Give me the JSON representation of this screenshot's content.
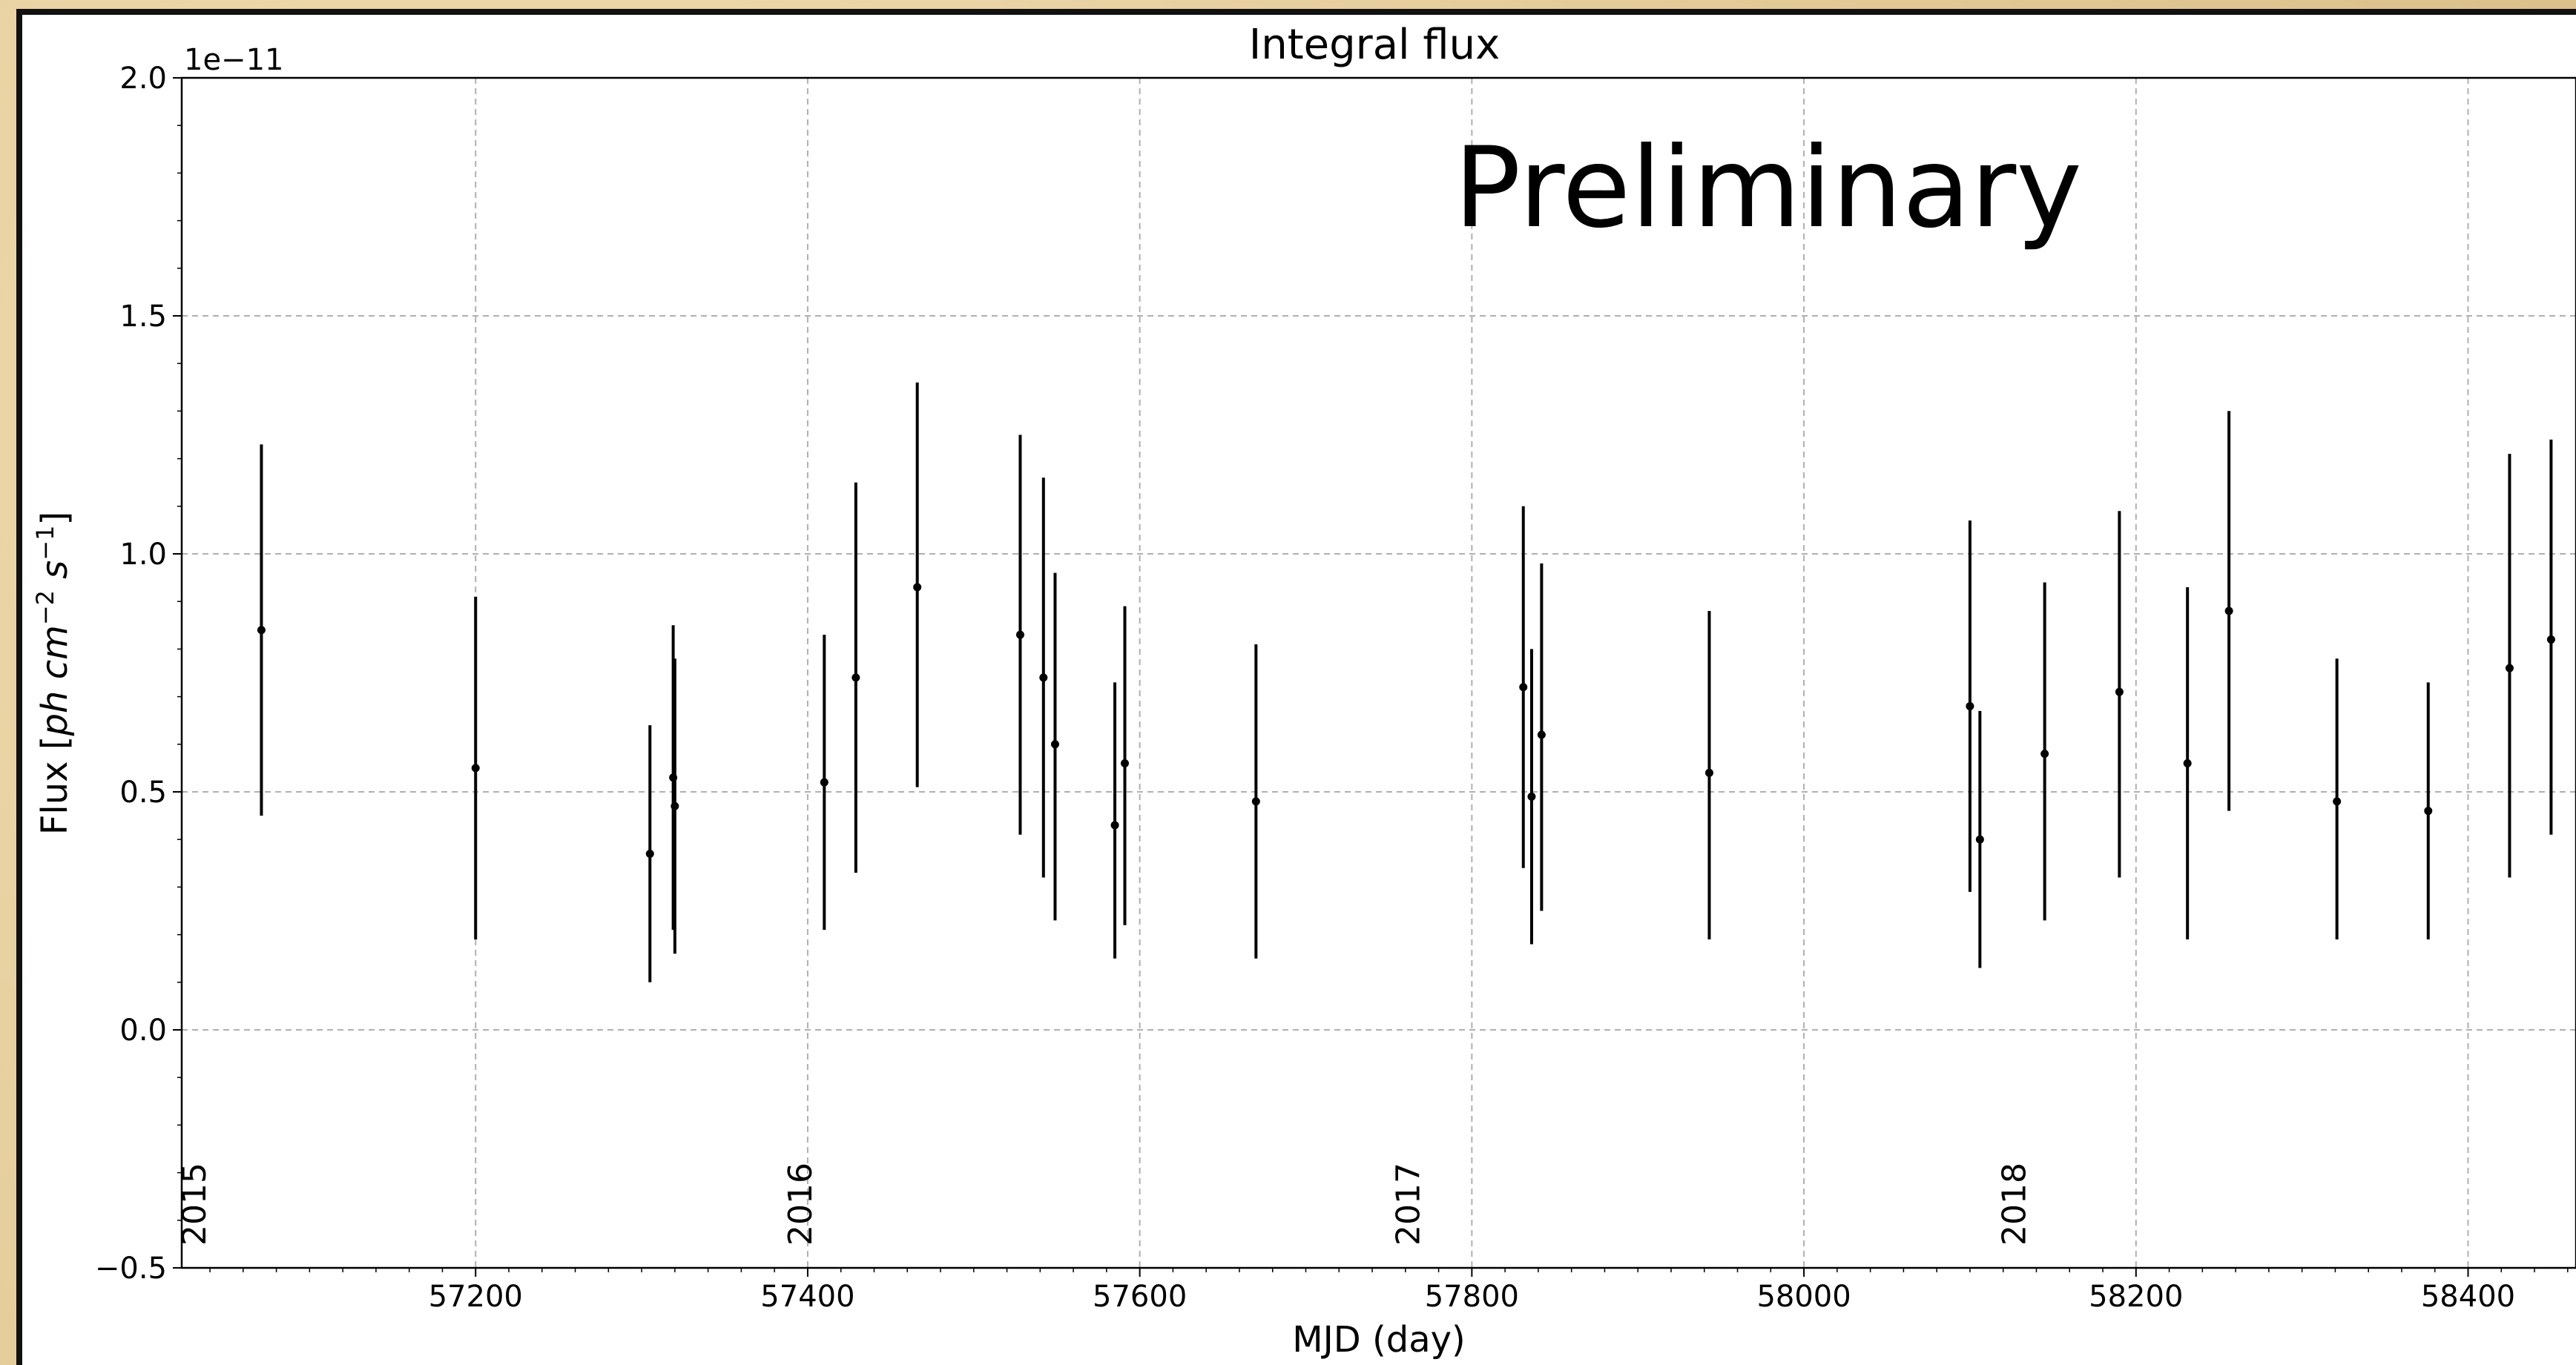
{
  "chart_data": {
    "type": "scatter",
    "title": "Integral flux",
    "xlabel": "MJD (day)",
    "ylabel": "Flux [ph cm^-2 s^-1]",
    "ylabel_parts": {
      "pre": "Flux [",
      "ph": "ph",
      "cm": "cm",
      "cm_exp": "−2",
      "s": "s",
      "s_exp": "−1",
      "post": "]"
    },
    "y_offset_text": "1e−11",
    "watermark": "Preliminary",
    "xlim": [
      57023,
      58465
    ],
    "ylim": [
      -0.5,
      2.0
    ],
    "x_ticks": [
      57200,
      57400,
      57600,
      57800,
      58000,
      58200,
      58400
    ],
    "y_ticks": [
      -0.5,
      0.0,
      0.5,
      1.0,
      1.5,
      2.0
    ],
    "y_tick_labels": [
      "−0.5",
      "0.0",
      "0.5",
      "1.0",
      "1.5",
      "2.0"
    ],
    "grid": true,
    "year_markers": [
      {
        "label": "2015",
        "x": 57023
      },
      {
        "label": "2016",
        "x": 57388
      },
      {
        "label": "2017",
        "x": 57754
      },
      {
        "label": "2018",
        "x": 58119
      }
    ],
    "series": [
      {
        "marker_color": "#000000",
        "points": [
          {
            "x": 57071,
            "y": 0.84,
            "ylow": 0.45,
            "yhigh": 1.23
          },
          {
            "x": 57200,
            "y": 0.55,
            "ylow": 0.19,
            "yhigh": 0.91
          },
          {
            "x": 57305,
            "y": 0.37,
            "ylow": 0.1,
            "yhigh": 0.64
          },
          {
            "x": 57319,
            "y": 0.53,
            "ylow": 0.21,
            "yhigh": 0.85
          },
          {
            "x": 57320,
            "y": 0.47,
            "ylow": 0.16,
            "yhigh": 0.78
          },
          {
            "x": 57410,
            "y": 0.52,
            "ylow": 0.21,
            "yhigh": 0.83
          },
          {
            "x": 57429,
            "y": 0.74,
            "ylow": 0.33,
            "yhigh": 1.15
          },
          {
            "x": 57466,
            "y": 0.93,
            "ylow": 0.51,
            "yhigh": 1.36
          },
          {
            "x": 57528,
            "y": 0.83,
            "ylow": 0.41,
            "yhigh": 1.25
          },
          {
            "x": 57542,
            "y": 0.74,
            "ylow": 0.32,
            "yhigh": 1.16
          },
          {
            "x": 57549,
            "y": 0.6,
            "ylow": 0.23,
            "yhigh": 0.96
          },
          {
            "x": 57585,
            "y": 0.43,
            "ylow": 0.15,
            "yhigh": 0.73
          },
          {
            "x": 57591,
            "y": 0.56,
            "ylow": 0.22,
            "yhigh": 0.89
          },
          {
            "x": 57670,
            "y": 0.48,
            "ylow": 0.15,
            "yhigh": 0.81
          },
          {
            "x": 57831,
            "y": 0.72,
            "ylow": 0.34,
            "yhigh": 1.1
          },
          {
            "x": 57836,
            "y": 0.49,
            "ylow": 0.18,
            "yhigh": 0.8
          },
          {
            "x": 57842,
            "y": 0.62,
            "ylow": 0.25,
            "yhigh": 0.98
          },
          {
            "x": 57943,
            "y": 0.54,
            "ylow": 0.19,
            "yhigh": 0.88
          },
          {
            "x": 58100,
            "y": 0.68,
            "ylow": 0.29,
            "yhigh": 1.07
          },
          {
            "x": 58106,
            "y": 0.4,
            "ylow": 0.13,
            "yhigh": 0.67
          },
          {
            "x": 58145,
            "y": 0.58,
            "ylow": 0.23,
            "yhigh": 0.94
          },
          {
            "x": 58190,
            "y": 0.71,
            "ylow": 0.32,
            "yhigh": 1.09
          },
          {
            "x": 58231,
            "y": 0.56,
            "ylow": 0.19,
            "yhigh": 0.93
          },
          {
            "x": 58256,
            "y": 0.88,
            "ylow": 0.46,
            "yhigh": 1.3
          },
          {
            "x": 58321,
            "y": 0.48,
            "ylow": 0.19,
            "yhigh": 0.78
          },
          {
            "x": 58376,
            "y": 0.46,
            "ylow": 0.19,
            "yhigh": 0.73
          },
          {
            "x": 58425,
            "y": 0.76,
            "ylow": 0.32,
            "yhigh": 1.21
          },
          {
            "x": 58450,
            "y": 0.82,
            "ylow": 0.41,
            "yhigh": 1.24
          }
        ]
      }
    ]
  }
}
